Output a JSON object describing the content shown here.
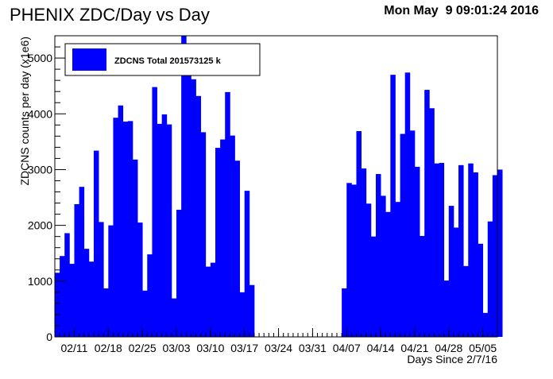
{
  "chart_data": {
    "type": "bar",
    "title": "PHENIX ZDC/Day vs Day",
    "timestamp": "Mon May  9 09:01:24 2016",
    "xlabel": "Days Since 2/7/16",
    "ylabel": "ZDCNS counts per day (x1e6)",
    "x_start_day": 0,
    "x_end_day": 91,
    "ylim": [
      0,
      5400
    ],
    "yticks": [
      0,
      1000,
      2000,
      3000,
      4000,
      5000
    ],
    "xticks": [
      {
        "day": 4,
        "label": "02/11"
      },
      {
        "day": 11,
        "label": "02/18"
      },
      {
        "day": 18,
        "label": "02/25"
      },
      {
        "day": 25,
        "label": "03/03"
      },
      {
        "day": 32,
        "label": "03/10"
      },
      {
        "day": 39,
        "label": "03/17"
      },
      {
        "day": 46,
        "label": "03/24"
      },
      {
        "day": 53,
        "label": "03/31"
      },
      {
        "day": 60,
        "label": "04/07"
      },
      {
        "day": 67,
        "label": "04/14"
      },
      {
        "day": 74,
        "label": "04/21"
      },
      {
        "day": 81,
        "label": "04/28"
      },
      {
        "day": 88,
        "label": "05/05"
      }
    ],
    "bar_color": "#0000ff",
    "legend": {
      "label": "ZDCNS Total 201573125 k",
      "placement": "top-left"
    },
    "values": [
      1150,
      1450,
      1860,
      1310,
      2380,
      2690,
      1580,
      1350,
      3340,
      2060,
      870,
      2000,
      3930,
      4150,
      3860,
      3870,
      3180,
      2050,
      830,
      1480,
      4480,
      3820,
      3990,
      3810,
      690,
      2280,
      5400,
      4880,
      4620,
      4320,
      3670,
      1260,
      1330,
      3390,
      3540,
      4390,
      3610,
      3160,
      800,
      2620,
      930,
      0,
      0,
      0,
      0,
      0,
      0,
      0,
      0,
      0,
      0,
      0,
      0,
      0,
      0,
      0,
      0,
      0,
      0,
      870,
      2760,
      2730,
      3690,
      3020,
      2390,
      1800,
      2920,
      2530,
      2240,
      4700,
      2420,
      3640,
      4740,
      3700,
      3050,
      1810,
      4430,
      4100,
      3110,
      3120,
      1010,
      2350,
      1960,
      3080,
      1270,
      3110,
      2950,
      1670,
      430,
      2070,
      2900,
      3000
    ]
  }
}
